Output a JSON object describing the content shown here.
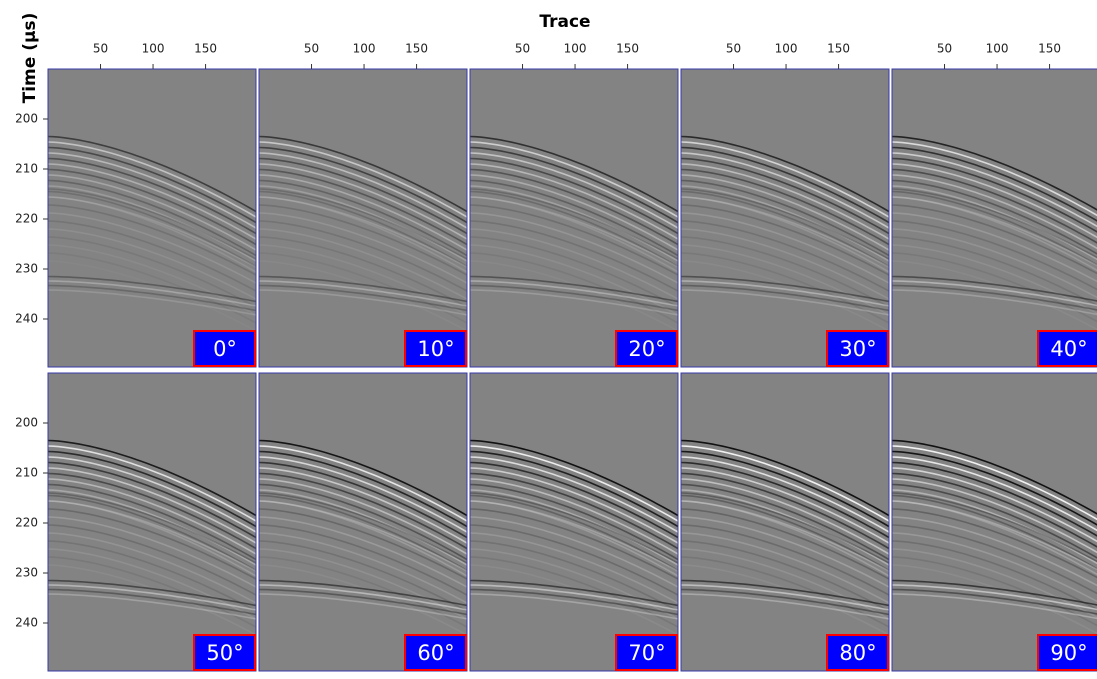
{
  "chart_data": {
    "type": "panel-grid",
    "x_label": "Trace",
    "y_label": "Time (µs)",
    "xlim": [
      0,
      198
    ],
    "xticks": [
      50,
      100,
      150
    ],
    "ylim": [
      190,
      249.6
    ],
    "yticks": [
      200,
      210,
      220,
      230,
      240
    ],
    "panels": [
      "0°",
      "10°",
      "20°",
      "30°",
      "40°",
      "50°",
      "60°",
      "70°",
      "80°",
      "90°"
    ],
    "columns": 5,
    "badge_color": "#0000ff",
    "badge_border": "#ff0000",
    "frame_color": "#3a3aa8"
  }
}
